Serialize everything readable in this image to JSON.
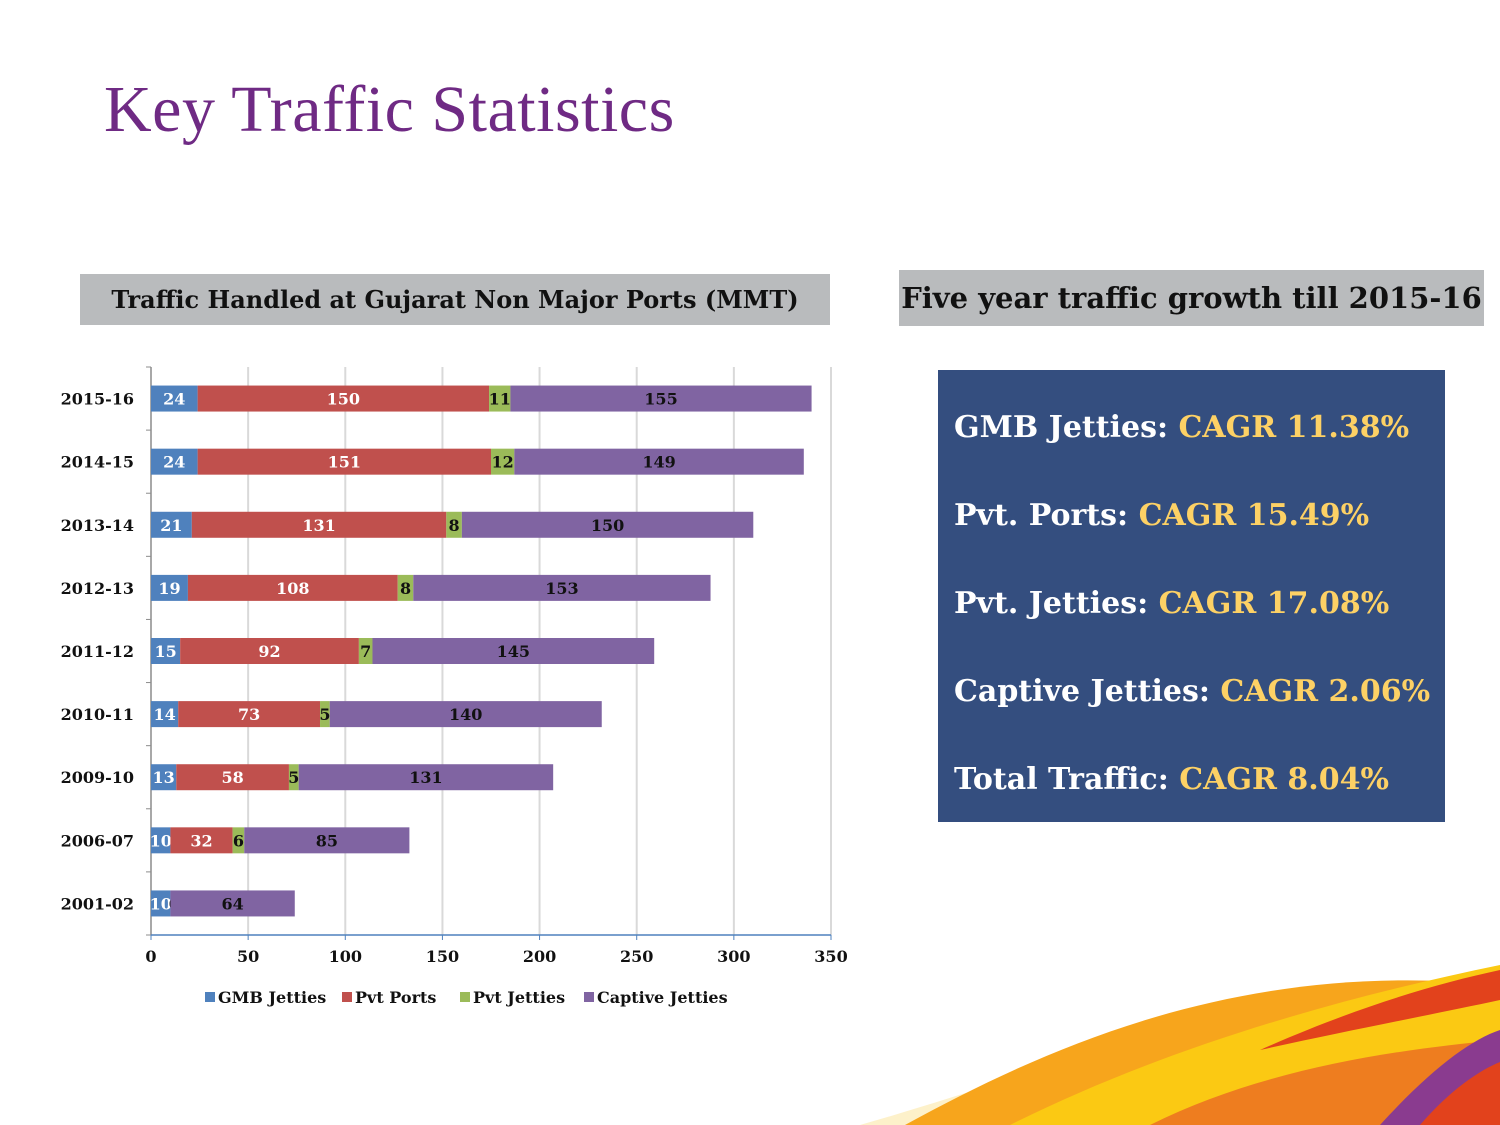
{
  "title": "Key Traffic Statistics",
  "chart_header": "Traffic Handled at Gujarat Non Major Ports (MMT)",
  "growth_header": "Five year traffic growth till 2015-16",
  "growth_items": [
    {
      "label": "GMB Jetties:",
      "value": "CAGR 11.38%"
    },
    {
      "label": "Pvt. Ports:",
      "value": "CAGR 15.49%"
    },
    {
      "label": "Pvt. Jetties:",
      "value": "CAGR 17.08%"
    },
    {
      "label": "Captive Jetties:",
      "value": "CAGR 2.06%"
    },
    {
      "label": "Total Traffic:",
      "value": "CAGR 8.04%"
    }
  ],
  "colors": {
    "gmb": "#4f81bd",
    "pvt_ports": "#c0504d",
    "pvt_jetties": "#9bbb59",
    "captive": "#8064a2",
    "title": "#6f2a84",
    "growth_box": "#344e7f",
    "growth_value": "#fdd165"
  },
  "chart_data": {
    "type": "bar",
    "orientation": "horizontal",
    "stacked": true,
    "categories": [
      "2015-16",
      "2014-15",
      "2013-14",
      "2012-13",
      "2011-12",
      "2010-11",
      "2009-10",
      "2006-07",
      "2001-02"
    ],
    "series": [
      {
        "name": "GMB Jetties",
        "values": [
          24,
          24,
          21,
          19,
          15,
          14,
          13,
          10,
          10
        ]
      },
      {
        "name": "Pvt Ports",
        "values": [
          150,
          151,
          131,
          108,
          92,
          73,
          58,
          32,
          0
        ]
      },
      {
        "name": "Pvt Jetties",
        "values": [
          11,
          12,
          8,
          8,
          7,
          5,
          5,
          6,
          0
        ]
      },
      {
        "name": "Captive Jetties",
        "values": [
          155,
          149,
          150,
          153,
          145,
          140,
          131,
          85,
          64
        ]
      }
    ],
    "xlim": [
      0,
      350
    ],
    "xticks": [
      0,
      50,
      100,
      150,
      200,
      250,
      300,
      350
    ],
    "grid": true,
    "legend": "bottom"
  }
}
